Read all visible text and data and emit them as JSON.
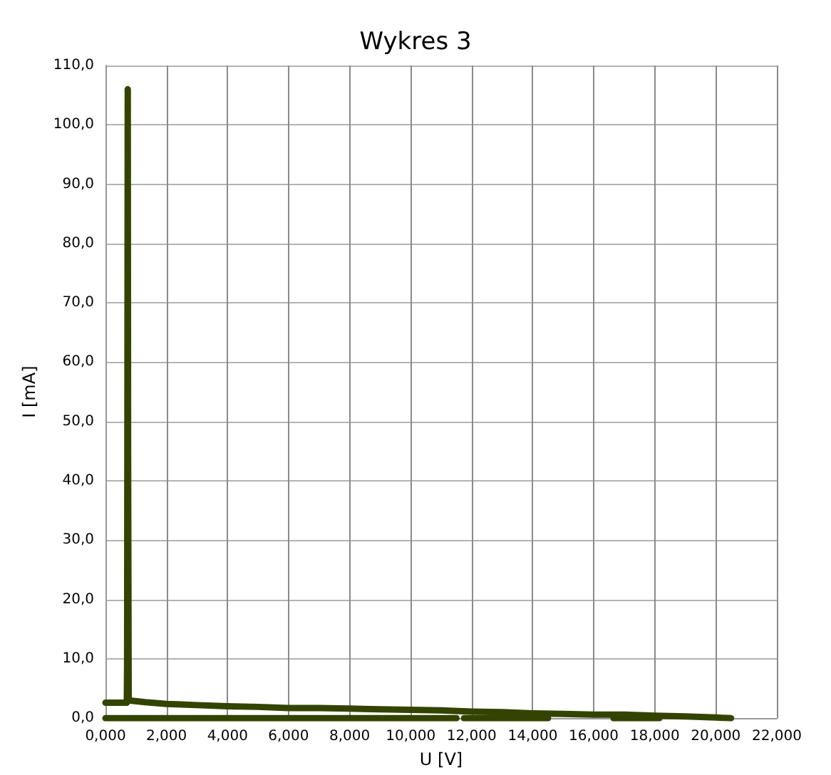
{
  "chart_data": {
    "type": "line",
    "title": "Wykres 3",
    "xlabel": "U [V]",
    "ylabel": "I [mA]",
    "series": [
      {
        "color": "#334400",
        "x": [
          0,
          0.7,
          0.71,
          0.73,
          0.74,
          0.76,
          1.3,
          2,
          3,
          4,
          5,
          6,
          7,
          8,
          9,
          10,
          11,
          12,
          13,
          14,
          15,
          16,
          17,
          18,
          19,
          20,
          20.5
        ],
        "values": [
          2.6,
          2.6,
          10,
          106,
          46,
          3,
          2.7,
          2.4,
          2.2,
          2.0,
          1.9,
          1.7,
          1.7,
          1.6,
          1.5,
          1.4,
          1.3,
          1.1,
          1.0,
          0.8,
          0.7,
          0.6,
          0.6,
          0.4,
          0.3,
          0.1,
          0
        ]
      },
      {
        "color": "#334400",
        "x": [
          0,
          11.5
        ],
        "values": [
          0,
          0
        ]
      },
      {
        "color": "#334400",
        "x": [
          11.75,
          14.5
        ],
        "values": [
          0,
          0
        ]
      },
      {
        "color": "#334400",
        "x": [
          16.65,
          18.15
        ],
        "values": [
          0,
          0
        ]
      }
    ],
    "xlim": [
      0,
      22
    ],
    "xticks": [
      {
        "value": 0,
        "label": "0,000"
      },
      {
        "value": 2,
        "label": "2,000"
      },
      {
        "value": 4,
        "label": "4,000"
      },
      {
        "value": 6,
        "label": "6,000"
      },
      {
        "value": 8,
        "label": "8,000"
      },
      {
        "value": 10,
        "label": "10,000"
      },
      {
        "value": 12,
        "label": "12,000"
      },
      {
        "value": 14,
        "label": "14,000"
      },
      {
        "value": 16,
        "label": "16,000"
      },
      {
        "value": 18,
        "label": "18,000"
      },
      {
        "value": 20,
        "label": "20,000"
      },
      {
        "value": 22,
        "label": "22,000"
      }
    ],
    "ylim": [
      0,
      110
    ],
    "yticks": [
      {
        "value": 0,
        "label": "0,0"
      },
      {
        "value": 10,
        "label": "10,0"
      },
      {
        "value": 20,
        "label": "20,0"
      },
      {
        "value": 30,
        "label": "30,0"
      },
      {
        "value": 40,
        "label": "40,0"
      },
      {
        "value": 50,
        "label": "50,0"
      },
      {
        "value": 60,
        "label": "60,0"
      },
      {
        "value": 70,
        "label": "70,0"
      },
      {
        "value": 80,
        "label": "80,0"
      },
      {
        "value": 90,
        "label": "90,0"
      },
      {
        "value": 100,
        "label": "100,0"
      },
      {
        "value": 110,
        "label": "110,0"
      }
    ],
    "grid": true,
    "marker": "none",
    "line_style": "solid"
  }
}
